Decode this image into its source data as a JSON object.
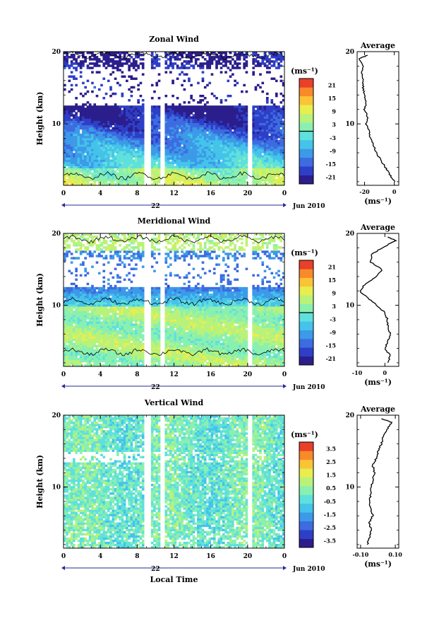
{
  "figure": {
    "date_label": "Jun 2010",
    "day_label": "22",
    "xlabel_bottom": "Local Time",
    "ylabel": "Height (km)",
    "x_ticks": [
      "0",
      "4",
      "8",
      "12",
      "16",
      "20",
      "0"
    ],
    "y_ticks": [
      "20",
      "10"
    ],
    "colorbar_unit": "(ms⁻¹)",
    "avg_unit": "(ms⁻¹)",
    "avg_title": "Average"
  },
  "chart_data": [
    {
      "type": "heatmap",
      "title": "Zonal Wind",
      "ylabel": "Height (km)",
      "xlim": [
        0,
        24
      ],
      "ylim": [
        1.5,
        20
      ],
      "colorbar_ticks": [
        "21",
        "15",
        "9",
        "3",
        "-3",
        "-9",
        "-15",
        "-21"
      ],
      "colorbar_range": [
        -24,
        24
      ],
      "colorbar_marked_value": 0,
      "profile": {
        "title": "Average",
        "xlim": [
          -25,
          3
        ],
        "x_ticks": [
          "-20",
          "0"
        ],
        "y_ticks": [
          "20",
          "10"
        ],
        "heights": [
          2,
          3,
          4,
          5,
          6,
          7,
          8,
          9,
          10,
          11,
          12,
          13,
          14,
          15,
          16,
          17,
          18,
          19,
          19.5
        ],
        "values": [
          0,
          -3,
          -6,
          -9,
          -12,
          -14,
          -16,
          -17,
          -19,
          -18,
          -20,
          -19,
          -20,
          -21,
          -21,
          -22,
          -21,
          -24,
          -18
        ]
      }
    },
    {
      "type": "heatmap",
      "title": "Meridional Wind",
      "ylabel": "Height (km)",
      "xlim": [
        0,
        24
      ],
      "ylim": [
        1.5,
        20
      ],
      "colorbar_ticks": [
        "21",
        "15",
        "9",
        "3",
        "-3",
        "-9",
        "-15",
        "-21"
      ],
      "colorbar_range": [
        -24,
        24
      ],
      "colorbar_marked_value": 0,
      "profile": {
        "title": "Average",
        "xlim": [
          -10,
          5
        ],
        "x_ticks": [
          "-10",
          "0"
        ],
        "y_ticks": [
          "20",
          "10"
        ],
        "heights": [
          2,
          3,
          4,
          5,
          6,
          7,
          8,
          9,
          10,
          11,
          12,
          13,
          14,
          15,
          16,
          17,
          18,
          19,
          19.5
        ],
        "values": [
          1,
          2,
          0,
          1,
          2,
          1,
          1,
          0,
          -3,
          -6,
          -9,
          -7,
          -3,
          -1,
          -5,
          -5,
          -1,
          4,
          1
        ]
      }
    },
    {
      "type": "heatmap",
      "title": "Vertical Wind",
      "ylabel": "Height (km)",
      "xlabel": "Local Time",
      "xlim": [
        0,
        24
      ],
      "ylim": [
        1.5,
        20
      ],
      "colorbar_ticks": [
        "3.5",
        "2.5",
        "1.5",
        "0.5",
        "-0.5",
        "-1.5",
        "-2.5",
        "-3.5"
      ],
      "colorbar_range": [
        -4,
        4
      ],
      "profile": {
        "title": "Average",
        "xlim": [
          -0.12,
          0.12
        ],
        "x_ticks": [
          "-0.10",
          "0.10"
        ],
        "y_ticks": [
          "20",
          "10"
        ],
        "heights": [
          2,
          3,
          4,
          5,
          6,
          7,
          8,
          9,
          10,
          11,
          12,
          13,
          14,
          15,
          16,
          17,
          18,
          19,
          19.5
        ],
        "values": [
          -0.06,
          -0.05,
          -0.04,
          -0.05,
          -0.03,
          -0.04,
          -0.05,
          -0.04,
          -0.04,
          -0.03,
          -0.02,
          -0.03,
          -0.01,
          0.0,
          0.02,
          0.03,
          0.05,
          0.08,
          0.02
        ]
      }
    }
  ]
}
